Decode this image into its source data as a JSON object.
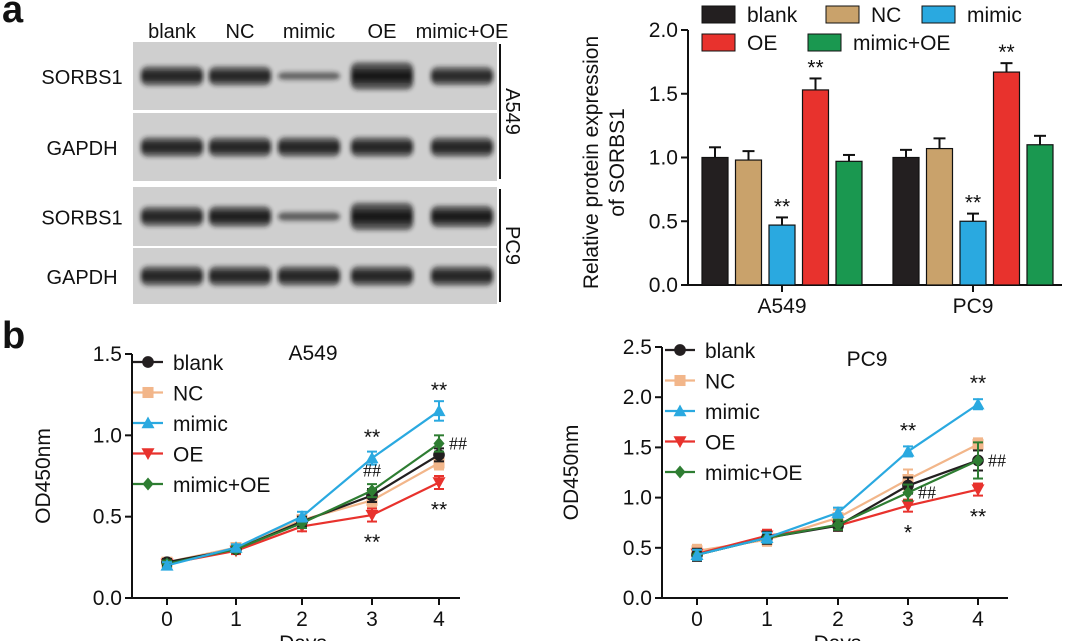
{
  "figure": {
    "panel_a_label": "a",
    "panel_b_label": "b"
  },
  "western_blot": {
    "lanes": [
      "blank",
      "NC",
      "mimic",
      "OE",
      "mimic+OE"
    ],
    "blocks": [
      {
        "cell_line": "A549",
        "rows": [
          {
            "protein": "SORBS1",
            "intensity": [
              1.0,
              0.98,
              0.45,
              1.55,
              0.95
            ]
          },
          {
            "protein": "GAPDH",
            "intensity": [
              1.0,
              1.0,
              1.0,
              1.0,
              1.0
            ]
          }
        ]
      },
      {
        "cell_line": "PC9",
        "rows": [
          {
            "protein": "SORBS1",
            "intensity": [
              1.0,
              1.05,
              0.5,
              1.65,
              1.1
            ]
          },
          {
            "protein": "GAPDH",
            "intensity": [
              1.0,
              1.0,
              1.0,
              1.0,
              1.0
            ]
          }
        ]
      }
    ]
  },
  "colors": {
    "blank": "#231f20",
    "NC": "#c9a26b",
    "mimic": "#2aa9e0",
    "OE": "#e8322d",
    "mimic+OE": "#1a9850",
    "line_NC": "#f2b68a",
    "line_mimicOE": "#2e7d32"
  },
  "chart_data": [
    {
      "type": "bar",
      "categories": [
        "A549",
        "PC9"
      ],
      "series": [
        {
          "name": "blank",
          "values": [
            1.0,
            1.0
          ],
          "errors": [
            0.08,
            0.06
          ]
        },
        {
          "name": "NC",
          "values": [
            0.98,
            1.07
          ],
          "errors": [
            0.07,
            0.08
          ]
        },
        {
          "name": "mimic",
          "values": [
            0.47,
            0.5
          ],
          "errors": [
            0.06,
            0.06
          ]
        },
        {
          "name": "OE",
          "values": [
            1.53,
            1.67
          ],
          "errors": [
            0.09,
            0.07
          ]
        },
        {
          "name": "mimic+OE",
          "values": [
            0.97,
            1.1
          ],
          "errors": [
            0.05,
            0.07
          ]
        }
      ],
      "significance": [
        {
          "category": "A549",
          "series": "mimic",
          "label": "**"
        },
        {
          "category": "A549",
          "series": "OE",
          "label": "**"
        },
        {
          "category": "PC9",
          "series": "mimic",
          "label": "**"
        },
        {
          "category": "PC9",
          "series": "OE",
          "label": "**"
        }
      ],
      "ylabel_line1": "Relative protein expression",
      "ylabel_line2": "of SORBS1",
      "ylim": [
        0,
        2.0
      ],
      "yticks": [
        "0.0",
        "0.5",
        "1.0",
        "1.5",
        "2.0"
      ],
      "legend_placement": "top",
      "grid": false
    },
    {
      "type": "line",
      "title": "A549",
      "x": [
        0,
        1,
        2,
        3,
        4
      ],
      "xticks": [
        "0",
        "1",
        "2",
        "3",
        "4"
      ],
      "xlabel": "Days",
      "ylabel": "OD450nm",
      "ylim": [
        0,
        1.5
      ],
      "yticks": [
        "0.0",
        "0.5",
        "1.0",
        "1.5"
      ],
      "series": [
        {
          "name": "blank",
          "values": [
            0.22,
            0.3,
            0.47,
            0.63,
            0.88
          ],
          "errors": [
            0.02,
            0.02,
            0.03,
            0.04,
            0.04
          ],
          "marker": "circle"
        },
        {
          "name": "NC",
          "values": [
            0.22,
            0.31,
            0.48,
            0.6,
            0.83
          ],
          "errors": [
            0.02,
            0.02,
            0.03,
            0.04,
            0.04
          ],
          "marker": "square"
        },
        {
          "name": "mimic",
          "values": [
            0.2,
            0.31,
            0.5,
            0.86,
            1.15
          ],
          "errors": [
            0.02,
            0.02,
            0.03,
            0.04,
            0.06
          ],
          "marker": "triangle-up"
        },
        {
          "name": "OE",
          "values": [
            0.21,
            0.29,
            0.44,
            0.51,
            0.71
          ],
          "errors": [
            0.02,
            0.02,
            0.03,
            0.04,
            0.04
          ],
          "marker": "triangle-down"
        },
        {
          "name": "mimic+OE",
          "values": [
            0.21,
            0.3,
            0.46,
            0.66,
            0.95
          ],
          "errors": [
            0.02,
            0.02,
            0.03,
            0.04,
            0.05
          ],
          "marker": "diamond"
        }
      ],
      "annotations": [
        {
          "x": 3,
          "y": 0.86,
          "text": "**",
          "pos": "above"
        },
        {
          "x": 4,
          "y": 1.15,
          "text": "**",
          "pos": "above"
        },
        {
          "x": 3,
          "y": 0.66,
          "text": "##",
          "pos": "above"
        },
        {
          "x": 4,
          "y": 0.95,
          "text": "##",
          "pos": "right"
        },
        {
          "x": 3,
          "y": 0.51,
          "text": "**",
          "pos": "below"
        },
        {
          "x": 4,
          "y": 0.71,
          "text": "**",
          "pos": "below"
        }
      ],
      "legend_placement": "top-left",
      "grid": false
    },
    {
      "type": "line",
      "title": "PC9",
      "x": [
        0,
        1,
        2,
        3,
        4
      ],
      "xticks": [
        "0",
        "1",
        "2",
        "3",
        "4"
      ],
      "xlabel": "Days",
      "ylabel": "OD450nm",
      "ylim": [
        0,
        2.5
      ],
      "yticks": [
        "0.0",
        "0.5",
        "1.0",
        "1.5",
        "2.0",
        "2.5"
      ],
      "series": [
        {
          "name": "blank",
          "values": [
            0.43,
            0.6,
            0.72,
            1.12,
            1.37
          ],
          "errors": [
            0.06,
            0.06,
            0.05,
            0.08,
            0.1
          ],
          "marker": "circle"
        },
        {
          "name": "NC",
          "values": [
            0.47,
            0.58,
            0.8,
            1.18,
            1.53
          ],
          "errors": [
            0.06,
            0.06,
            0.08,
            0.1,
            0.06
          ],
          "marker": "square"
        },
        {
          "name": "mimic",
          "values": [
            0.43,
            0.6,
            0.85,
            1.46,
            1.93
          ],
          "errors": [
            0.05,
            0.05,
            0.05,
            0.05,
            0.05
          ],
          "marker": "triangle-up"
        },
        {
          "name": "OE",
          "values": [
            0.44,
            0.62,
            0.72,
            0.92,
            1.08
          ],
          "errors": [
            0.05,
            0.06,
            0.05,
            0.06,
            0.06
          ],
          "marker": "triangle-down"
        },
        {
          "name": "mimic+OE",
          "values": [
            0.43,
            0.6,
            0.73,
            1.05,
            1.37
          ],
          "errors": [
            0.05,
            0.05,
            0.05,
            0.08,
            0.18
          ],
          "marker": "diamond"
        }
      ],
      "annotations": [
        {
          "x": 3,
          "y": 1.46,
          "text": "**",
          "pos": "above"
        },
        {
          "x": 4,
          "y": 1.93,
          "text": "**",
          "pos": "above"
        },
        {
          "x": 3,
          "y": 1.05,
          "text": "##",
          "pos": "right"
        },
        {
          "x": 4,
          "y": 1.37,
          "text": "##",
          "pos": "right"
        },
        {
          "x": 3,
          "y": 0.92,
          "text": "*",
          "pos": "below"
        },
        {
          "x": 4,
          "y": 1.08,
          "text": "**",
          "pos": "below"
        }
      ],
      "legend_placement": "top-left",
      "grid": false
    }
  ]
}
